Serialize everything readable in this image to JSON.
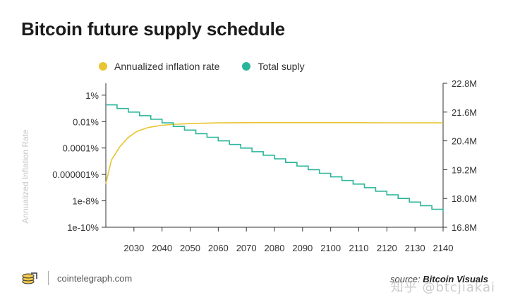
{
  "title": "Bitcoin future supply schedule",
  "footer": {
    "site": "cointelegraph.com",
    "source_prefix": "source:",
    "source_name": "Bitcoin Visuals",
    "watermark": "知乎 @btcjiakai"
  },
  "colors": {
    "inflation": "#e8c531",
    "supply": "#2ab59a",
    "axis": "#333333",
    "grid": "#dddddd",
    "text": "#333333"
  },
  "chart_data": {
    "type": "line",
    "legend": [
      {
        "name": "Annualized inflation rate",
        "color": "#e8c531"
      },
      {
        "name": "Total suply",
        "color": "#2ab59a"
      }
    ],
    "x_ticks": [
      "2030",
      "2040",
      "2050",
      "2060",
      "2070",
      "2080",
      "2090",
      "2100",
      "2110",
      "2120",
      "2130",
      "2140"
    ],
    "xlim": [
      2020,
      2140
    ],
    "y_left": {
      "label": "Annualized Inflation Rate",
      "scale": "log",
      "ticks": [
        "1%",
        "0.01%",
        "0.0001%",
        "0.000001%",
        "1e-8%",
        "1e-10%"
      ],
      "tick_values_log10": [
        0,
        -2,
        -4,
        -6,
        -8,
        -10
      ]
    },
    "y_right": {
      "ticks": [
        "22.8M",
        "21.6M",
        "20.4M",
        "19.2M",
        "18.0M",
        "16.8M"
      ],
      "tick_values": [
        22.8,
        21.6,
        20.4,
        19.2,
        18.0,
        16.8
      ],
      "unit": "M"
    },
    "series": [
      {
        "name": "Annualized inflation rate",
        "axis": "left",
        "x": [
          2020,
          2022,
          2025,
          2028,
          2031,
          2035,
          2040,
          2045,
          2050,
          2060,
          2070,
          2080,
          2090,
          2100,
          2110,
          2120,
          2130,
          2140
        ],
        "values_log10": [
          -6.7,
          -4.9,
          -3.9,
          -3.2,
          -2.75,
          -2.45,
          -2.28,
          -2.2,
          -2.15,
          -2.1,
          -2.08,
          -2.08,
          -2.08,
          -2.08,
          -2.08,
          -2.09,
          -2.1,
          -2.1
        ]
      },
      {
        "name": "Total suply",
        "axis": "right",
        "step": true,
        "x": [
          2020,
          2024,
          2028,
          2032,
          2036,
          2040,
          2044,
          2048,
          2052,
          2056,
          2060,
          2064,
          2068,
          2072,
          2076,
          2080,
          2084,
          2088,
          2092,
          2096,
          2100,
          2104,
          2108,
          2112,
          2116,
          2120,
          2124,
          2128,
          2132,
          2136,
          2140
        ],
        "values": [
          21.9,
          21.75,
          21.6,
          21.45,
          21.3,
          21.15,
          21.0,
          20.85,
          20.7,
          20.55,
          20.4,
          20.25,
          20.1,
          19.95,
          19.8,
          19.65,
          19.5,
          19.35,
          19.2,
          19.05,
          18.9,
          18.75,
          18.6,
          18.45,
          18.3,
          18.15,
          18.0,
          17.85,
          17.7,
          17.55,
          17.45
        ]
      }
    ]
  }
}
